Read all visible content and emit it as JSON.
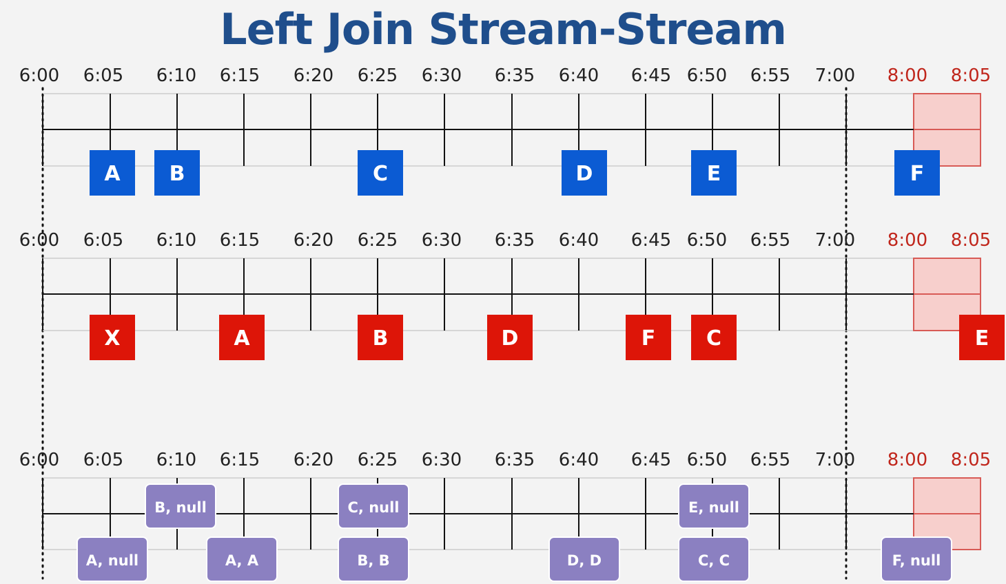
{
  "title": "Left Join Stream-Stream",
  "colors": {
    "blue_event": "#0b5bd3",
    "red_event": "#dd1508",
    "result_box": "#8b80c1",
    "late_label": "#c0261c",
    "late_window_fill": "#f7cfcc",
    "late_window_stroke": "#d85a55",
    "axis_label": "#222222"
  },
  "timelines": [
    {
      "name": "left-stream",
      "ticks": [
        "6:00",
        "6:05",
        "6:10",
        "6:15",
        "6:20",
        "6:25",
        "6:30",
        "6:35",
        "6:40",
        "6:45",
        "6:50",
        "6:55",
        "7:00"
      ],
      "late_ticks": [
        "8:00",
        "8:05"
      ],
      "events": [
        {
          "label": "A",
          "slot": 1
        },
        {
          "label": "B",
          "slot": 2
        },
        {
          "label": "C",
          "slot": 5
        },
        {
          "label": "D",
          "slot": 8
        },
        {
          "label": "E",
          "slot": 10
        },
        {
          "label": "F",
          "slot": 13
        }
      ]
    },
    {
      "name": "right-stream",
      "ticks": [
        "6:00",
        "6:05",
        "6:10",
        "6:15",
        "6:20",
        "6:25",
        "6:30",
        "6:35",
        "6:40",
        "6:45",
        "6:50",
        "6:55",
        "7:00"
      ],
      "late_ticks": [
        "8:00",
        "8:05"
      ],
      "events": [
        {
          "label": "X",
          "slot": 1
        },
        {
          "label": "A",
          "slot": 3
        },
        {
          "label": "B",
          "slot": 5
        },
        {
          "label": "D",
          "slot": 7
        },
        {
          "label": "F",
          "slot": 9
        },
        {
          "label": "C",
          "slot": 10
        },
        {
          "label": "E",
          "slot": 14
        }
      ]
    },
    {
      "name": "join-output",
      "ticks": [
        "6:00",
        "6:05",
        "6:10",
        "6:15",
        "6:20",
        "6:25",
        "6:30",
        "6:35",
        "6:40",
        "6:45",
        "6:50",
        "6:55",
        "7:00"
      ],
      "late_ticks": [
        "8:00",
        "8:05"
      ],
      "results": [
        {
          "label": "B, null",
          "slot": 2,
          "level": "upper"
        },
        {
          "label": "A, null",
          "slot": 1,
          "level": "lower"
        },
        {
          "label": "A, A",
          "slot": 3,
          "level": "lower"
        },
        {
          "label": "C, null",
          "slot": 5,
          "level": "upper"
        },
        {
          "label": "B, B",
          "slot": 5,
          "level": "lower"
        },
        {
          "label": "D, D",
          "slot": 8,
          "level": "lower"
        },
        {
          "label": "E, null",
          "slot": 10,
          "level": "upper"
        },
        {
          "label": "C, C",
          "slot": 10,
          "level": "lower"
        },
        {
          "label": "F, null",
          "slot": 13,
          "level": "lower"
        }
      ]
    }
  ]
}
